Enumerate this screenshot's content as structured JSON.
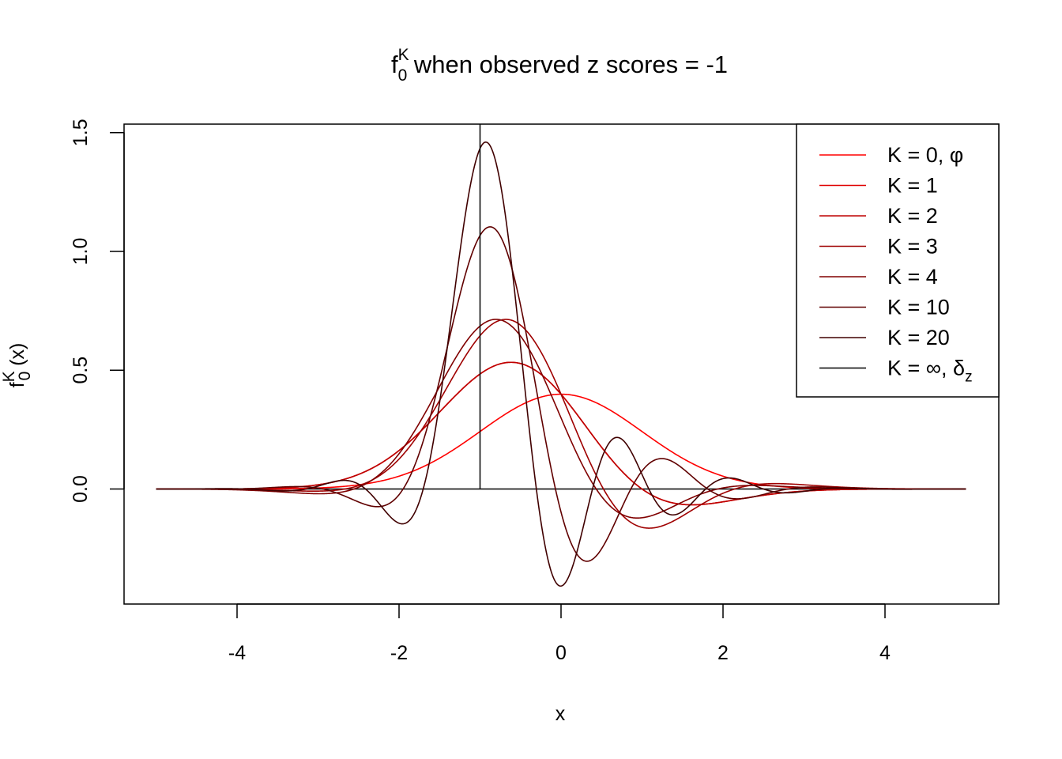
{
  "chart_data": {
    "type": "line",
    "title_main": "f",
    "title_sup": "K",
    "title_sub": "0",
    "title_rest": " when observed z scores = -1",
    "xlabel": "x",
    "ylabel_main": "f",
    "ylabel_sup": "K",
    "ylabel_sub": "0",
    "ylabel_rest": " (x)",
    "xlim": [
      -5.2,
      5.3
    ],
    "ylim": [
      -0.48,
      1.54
    ],
    "xticks": [
      -4,
      -2,
      0,
      2,
      4
    ],
    "xtick_labels": [
      "-4",
      "-2",
      "0",
      "2",
      "4"
    ],
    "yticks": [
      0.0,
      0.5,
      1.0,
      1.5
    ],
    "ytick_labels": [
      "0.0",
      "0.5",
      "1.0",
      "1.5"
    ],
    "observed_z": -1,
    "zero_line": true,
    "legend_position": "top-right",
    "series": [
      {
        "name": "K = 0, φ",
        "color": "#ff0000",
        "K": 0
      },
      {
        "name": "K = 1",
        "color": "#df0000",
        "K": 1
      },
      {
        "name": "K = 2",
        "color": "#bf0000",
        "K": 2
      },
      {
        "name": "K = 3",
        "color": "#9f0000",
        "K": 3
      },
      {
        "name": "K = 4",
        "color": "#800000",
        "K": 4
      },
      {
        "name": "K = 10",
        "color": "#600000",
        "K": 10
      },
      {
        "name": "K = 20",
        "color": "#400000",
        "K": 20
      },
      {
        "name": "K = ∞, δ",
        "name_sub": "z",
        "color": "#000000",
        "K": "inf"
      }
    ]
  }
}
